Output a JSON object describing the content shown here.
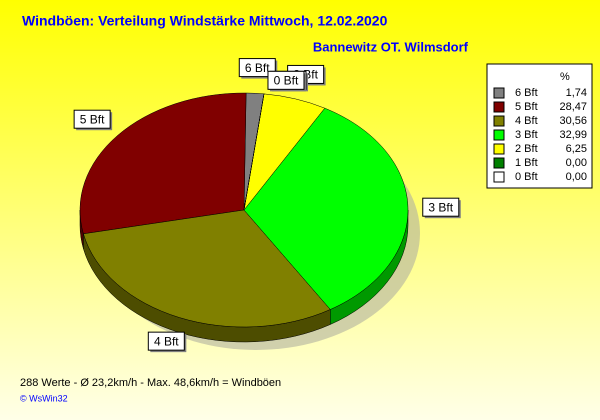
{
  "chart_data": {
    "type": "pie",
    "title": "Windböen: Verteilung Windstärke  Mittwoch, 12.02.2020",
    "subtitle": "Bannewitz OT. Wilmsdorf",
    "legend_header": "%",
    "categories": [
      "6 Bft",
      "5 Bft",
      "4 Bft",
      "3 Bft",
      "2 Bft",
      "1 Bft",
      "0 Bft"
    ],
    "values": [
      1.74,
      28.47,
      30.56,
      32.99,
      6.25,
      0.0,
      0.0
    ],
    "value_labels": [
      "1,74",
      "28,47",
      "30,56",
      "32,99",
      "6,25",
      "0,00",
      "0,00"
    ],
    "colors": [
      "#808080",
      "#800000",
      "#808000",
      "#00ff00",
      "#ffff00",
      "#008000",
      "#ffffff"
    ],
    "footer": "288 Werte   -   Ø 23,2km/h  -  Max. 48,6km/h = Windböen",
    "credit": "© WsWin32"
  }
}
